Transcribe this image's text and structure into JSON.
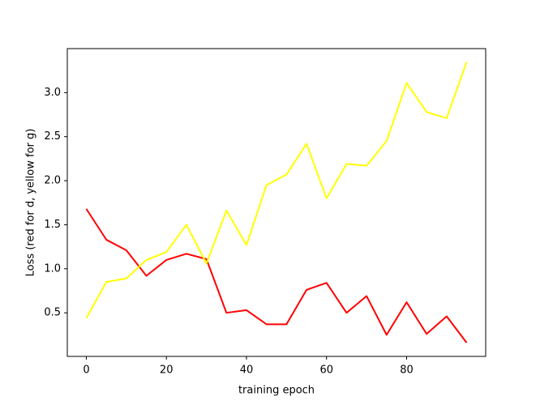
{
  "chart_data": {
    "type": "line",
    "x_label": "training epoch",
    "y_label": "Loss (red for d, yellow for g)",
    "x": [
      0,
      5,
      10,
      15,
      20,
      25,
      30,
      35,
      40,
      45,
      50,
      55,
      60,
      65,
      70,
      75,
      80,
      85,
      90,
      95
    ],
    "series": [
      {
        "color": "#ff0000",
        "values": [
          1.68,
          1.33,
          1.21,
          0.92,
          1.1,
          1.17,
          1.11,
          0.5,
          0.53,
          0.37,
          0.37,
          0.76,
          0.84,
          0.5,
          0.69,
          0.25,
          0.62,
          0.26,
          0.46,
          0.16
        ]
      },
      {
        "color": "#ffff00",
        "values": [
          0.44,
          0.85,
          0.89,
          1.1,
          1.19,
          1.5,
          1.06,
          1.66,
          1.27,
          1.95,
          2.07,
          2.42,
          1.8,
          2.19,
          2.17,
          2.45,
          3.11,
          2.78,
          2.71,
          3.35
        ]
      }
    ],
    "xlim": [
      -4.75,
      99.75
    ],
    "xticks": [
      0,
      20,
      40,
      60,
      80
    ],
    "ylim": [
      0.005,
      3.5
    ],
    "yticks": [
      0.5,
      {
        "value": 1,
        "label": "1.0"
      },
      1.5,
      {
        "value": 2,
        "label": "2.0"
      },
      2.5,
      {
        "value": 3,
        "label": "3.0"
      }
    ],
    "grid": false
  }
}
